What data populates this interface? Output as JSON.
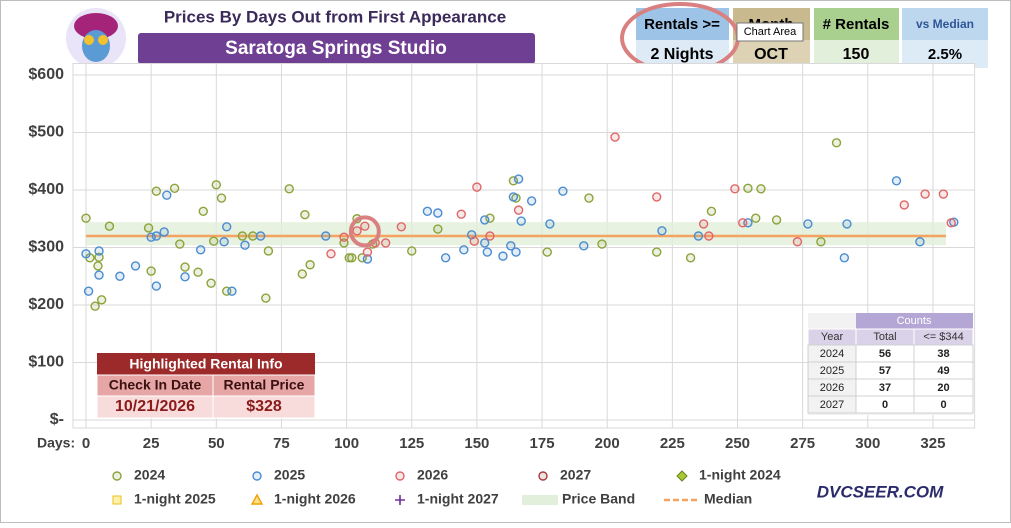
{
  "header": {
    "title": "Prices By Days Out from First Appearance",
    "subtitle": "Saratoga Springs Studio"
  },
  "filters": [
    {
      "label": "Rentals >=",
      "value": "2 Nights"
    },
    {
      "label": "Month",
      "value": "OCT"
    },
    {
      "label": "# Rentals",
      "value": "150"
    },
    {
      "label": "vs Median",
      "value": "2.5%"
    }
  ],
  "tooltip": "Chart Area",
  "highlight_info": {
    "title": "Highlighted Rental Info",
    "columns": [
      "Check In Date",
      "Rental Price"
    ],
    "values": [
      "10/21/2026",
      "$328"
    ]
  },
  "counts": {
    "title": "Counts",
    "columns": [
      "Year",
      "Total",
      "<= $344"
    ],
    "rows": [
      [
        "2024",
        "56",
        "38"
      ],
      [
        "2025",
        "57",
        "49"
      ],
      [
        "2026",
        "37",
        "20"
      ],
      [
        "2027",
        "0",
        "0"
      ]
    ]
  },
  "watermark": "DVCSEER.COM",
  "chart_data": {
    "type": "scatter",
    "xlabel": "Days:",
    "xlim": [
      -5,
      341
    ],
    "ylim": [
      0,
      620
    ],
    "xticks": [
      0,
      25,
      50,
      75,
      100,
      125,
      150,
      175,
      200,
      225,
      250,
      275,
      300,
      325
    ],
    "yticks": [
      {
        "value": 0,
        "label": "$-"
      },
      {
        "value": 100,
        "label": "$100"
      },
      {
        "value": 200,
        "label": "$200"
      },
      {
        "value": 300,
        "label": "$300"
      },
      {
        "value": 400,
        "label": "$400"
      },
      {
        "value": 500,
        "label": "$500"
      },
      {
        "value": 600,
        "label": "$600"
      }
    ],
    "grid": true,
    "series": [
      {
        "name": "2024",
        "color": "#8aa33a",
        "marker": "circle",
        "x": [
          0,
          1.5,
          3.5,
          6,
          4.6,
          5,
          9,
          24,
          25,
          27,
          34,
          36,
          38,
          43,
          45,
          48,
          49,
          50,
          52,
          54,
          60,
          64,
          69,
          70,
          78,
          83,
          84,
          86,
          99,
          101,
          102,
          104,
          106,
          110,
          125,
          135,
          155,
          165,
          164,
          177,
          193,
          198,
          219,
          232,
          240,
          254,
          259,
          257,
          265,
          282,
          288
        ],
        "values": [
          351,
          282,
          198,
          209,
          268,
          283,
          337,
          334,
          259,
          398,
          403,
          306,
          266,
          257,
          363,
          238,
          311,
          409,
          386,
          224,
          320,
          320,
          212,
          294,
          402,
          254,
          357,
          270,
          308,
          282,
          282,
          350,
          282,
          306,
          294,
          332,
          351,
          386,
          416,
          292,
          386,
          306,
          292,
          282,
          363,
          403,
          402,
          351,
          348,
          310,
          482
        ]
      },
      {
        "name": "2025",
        "color": "#4a8ccf",
        "marker": "circle",
        "x": [
          0,
          1,
          5,
          5,
          13,
          19,
          25,
          27,
          27,
          30,
          31,
          38,
          44,
          53,
          54,
          56,
          61,
          67,
          92,
          108,
          131,
          135,
          138,
          145,
          148,
          153,
          153,
          154,
          160,
          163,
          165,
          164,
          166,
          167,
          171,
          178,
          183,
          191,
          221,
          235,
          254,
          277,
          291,
          292,
          311,
          320,
          333
        ],
        "values": [
          289,
          224,
          294,
          252,
          250,
          268,
          318,
          320,
          233,
          327,
          391,
          249,
          296,
          310,
          336,
          224,
          304,
          320,
          320,
          280,
          363,
          360,
          282,
          296,
          322,
          308,
          348,
          292,
          285,
          303,
          292,
          388,
          419,
          346,
          381,
          341,
          398,
          303,
          329,
          320,
          343,
          341,
          282,
          341,
          416,
          310,
          344
        ]
      },
      {
        "name": "2026",
        "color": "#e06666",
        "marker": "circle",
        "x": [
          94,
          99,
          104,
          107,
          108,
          111,
          115,
          121,
          144,
          150,
          149,
          155,
          166,
          203,
          219,
          237,
          239,
          249,
          252,
          273,
          314,
          322,
          329,
          332
        ],
        "values": [
          289,
          318,
          329,
          337,
          292,
          308,
          308,
          336,
          358,
          405,
          311,
          320,
          365,
          492,
          388,
          341,
          320,
          402,
          343,
          310,
          374,
          393,
          393,
          343
        ]
      },
      {
        "name": "2027",
        "color": "#a33b3b",
        "marker": "circle",
        "x": [],
        "values": []
      },
      {
        "name": "1-night 2024",
        "color": "#a9c934",
        "marker": "diamond",
        "x": [],
        "values": []
      },
      {
        "name": "1-night 2025",
        "color": "#e8c021",
        "marker": "square",
        "x": [],
        "values": []
      },
      {
        "name": "1-night 2026",
        "color": "#f0a000",
        "marker": "triangle",
        "x": [],
        "values": []
      },
      {
        "name": "1-night 2027",
        "color": "#7030a0",
        "marker": "plus",
        "x": [],
        "values": []
      }
    ],
    "price_band": {
      "name": "Price Band",
      "color": "#e2efda",
      "x": [
        0,
        330
      ],
      "range": [
        304,
        344
      ]
    },
    "median": {
      "name": "Median",
      "color": "#f4a460",
      "x": [
        0,
        330
      ],
      "value": 320
    },
    "highlight": {
      "x": 107,
      "y": 328,
      "color": "#d98080"
    }
  }
}
